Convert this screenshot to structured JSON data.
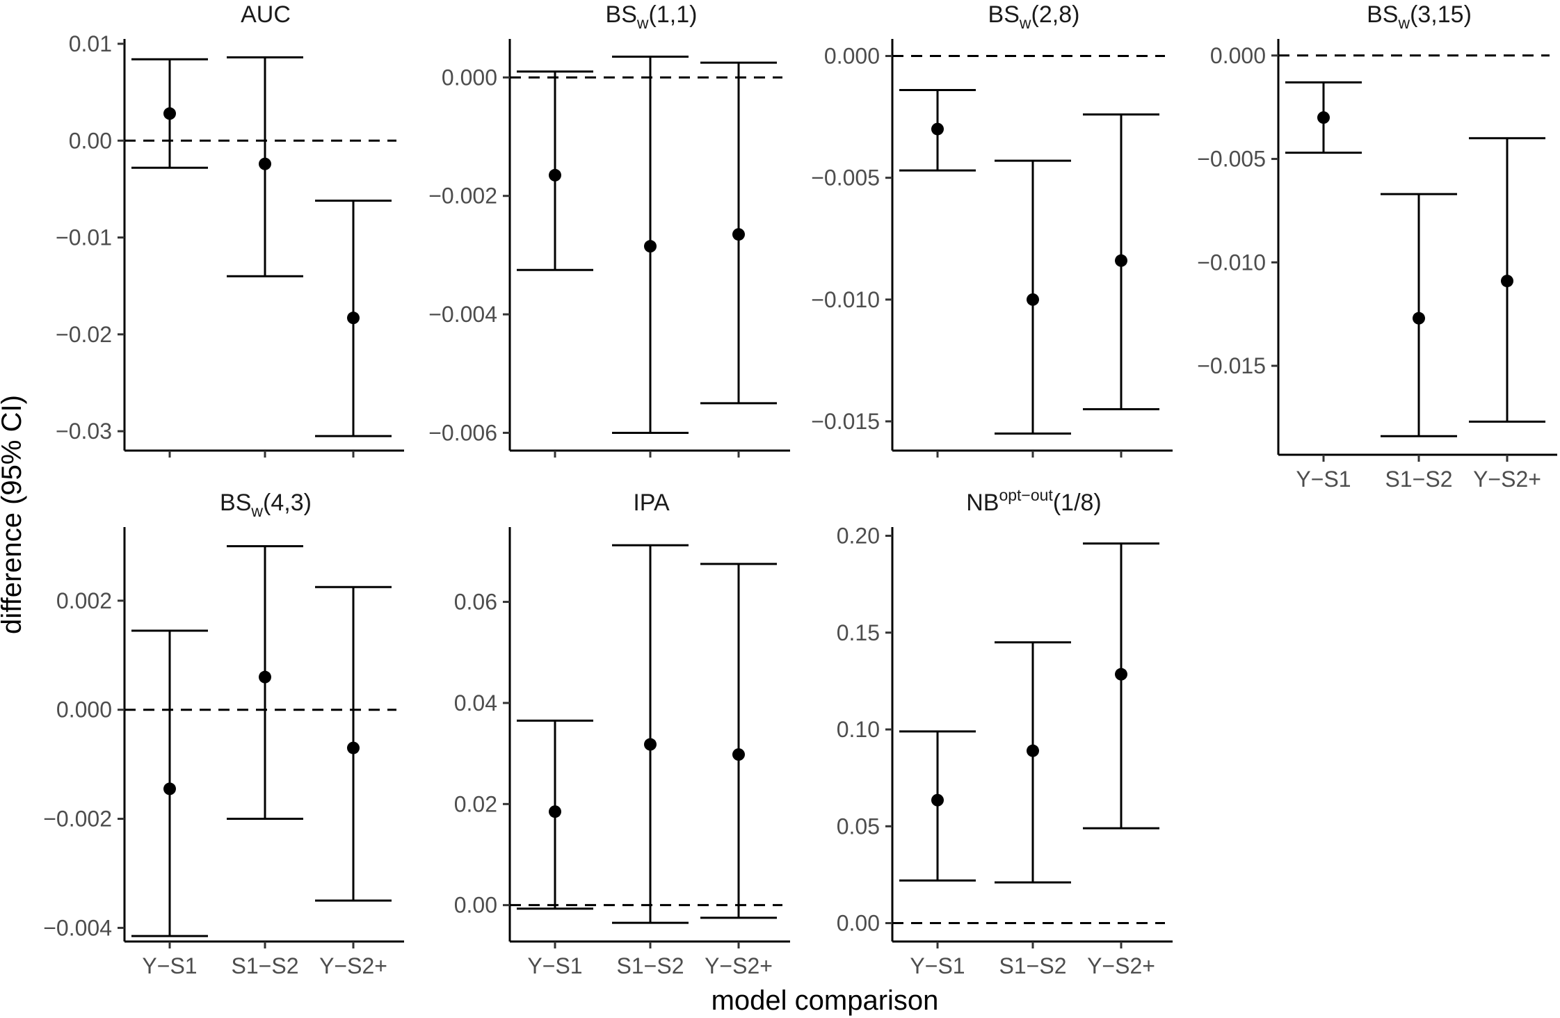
{
  "chart_data": {
    "type": "errorbar",
    "ylabel": "difference (95% CI)",
    "xlabel": "model comparison",
    "categories": [
      "Y−S1",
      "S1−S2",
      "Y−S2+"
    ],
    "reference_line": 0,
    "panels": [
      {
        "id": "auc",
        "title_main": "AUC",
        "title_script": "",
        "title_script_pos": "",
        "title_tail": "",
        "ylim": [
          -0.032,
          0.0105
        ],
        "ticks": [
          0.01,
          0.0,
          -0.01,
          -0.02,
          -0.03
        ],
        "tick_labels": [
          "0.01",
          "0.00",
          "−0.01",
          "−0.02",
          "−0.03"
        ],
        "points": [
          {
            "estimate": 0.0028,
            "lower": -0.0028,
            "upper": 0.0084
          },
          {
            "estimate": -0.0024,
            "lower": -0.014,
            "upper": 0.0086
          },
          {
            "estimate": -0.0183,
            "lower": -0.0305,
            "upper": -0.0062
          }
        ]
      },
      {
        "id": "bsw-1-1",
        "title_main": "BS",
        "title_script": "w",
        "title_script_pos": "sub",
        "title_tail": "(1,1)",
        "ylim": [
          -0.0063,
          0.00065
        ],
        "ticks": [
          0.0,
          -0.002,
          -0.004,
          -0.006
        ],
        "tick_labels": [
          "0.000",
          "−0.002",
          "−0.004",
          "−0.006"
        ],
        "points": [
          {
            "estimate": -0.00165,
            "lower": -0.00325,
            "upper": 0.0001
          },
          {
            "estimate": -0.00285,
            "lower": -0.006,
            "upper": 0.00035
          },
          {
            "estimate": -0.00265,
            "lower": -0.0055,
            "upper": 0.00025
          }
        ]
      },
      {
        "id": "bsw-2-8",
        "title_main": "BS",
        "title_script": "w",
        "title_script_pos": "sub",
        "title_tail": "(2,8)",
        "ylim": [
          -0.0162,
          0.0007
        ],
        "ticks": [
          0.0,
          -0.005,
          -0.01,
          -0.015
        ],
        "tick_labels": [
          "0.000",
          "−0.005",
          "−0.010",
          "−0.015"
        ],
        "points": [
          {
            "estimate": -0.003,
            "lower": -0.0047,
            "upper": -0.0014
          },
          {
            "estimate": -0.01,
            "lower": -0.0155,
            "upper": -0.0043
          },
          {
            "estimate": -0.0084,
            "lower": -0.0145,
            "upper": -0.0024
          }
        ]
      },
      {
        "id": "bsw-3-15",
        "title_main": "BS",
        "title_script": "w",
        "title_script_pos": "sub",
        "title_tail": "(3,15)",
        "ylim": [
          -0.0193,
          0.0008
        ],
        "ticks": [
          0.0,
          -0.005,
          -0.01,
          -0.015
        ],
        "tick_labels": [
          "0.000",
          "−0.005",
          "−0.010",
          "−0.015"
        ],
        "points": [
          {
            "estimate": -0.003,
            "lower": -0.0047,
            "upper": -0.0013
          },
          {
            "estimate": -0.0127,
            "lower": -0.0184,
            "upper": -0.0067
          },
          {
            "estimate": -0.0109,
            "lower": -0.0177,
            "upper": -0.004
          }
        ]
      },
      {
        "id": "bsw-4-3",
        "title_main": "BS",
        "title_script": "w",
        "title_script_pos": "sub",
        "title_tail": "(4,3)",
        "ylim": [
          -0.00425,
          0.00335
        ],
        "ticks": [
          0.002,
          0.0,
          -0.002,
          -0.004
        ],
        "tick_labels": [
          "0.002",
          "0.000",
          "−0.002",
          "−0.004"
        ],
        "points": [
          {
            "estimate": -0.00145,
            "lower": -0.00415,
            "upper": 0.00145
          },
          {
            "estimate": 0.0006,
            "lower": -0.002,
            "upper": 0.003
          },
          {
            "estimate": -0.0007,
            "lower": -0.0035,
            "upper": 0.00225
          }
        ]
      },
      {
        "id": "ipa",
        "title_main": "IPA",
        "title_script": "",
        "title_script_pos": "",
        "title_tail": "",
        "ylim": [
          -0.0072,
          0.0748
        ],
        "ticks": [
          0.06,
          0.04,
          0.02,
          0.0
        ],
        "tick_labels": [
          "0.06",
          "0.04",
          "0.02",
          "0.00"
        ],
        "points": [
          {
            "estimate": 0.0185,
            "lower": -0.0007,
            "upper": 0.0365
          },
          {
            "estimate": 0.0318,
            "lower": -0.0035,
            "upper": 0.0712
          },
          {
            "estimate": 0.0298,
            "lower": -0.0025,
            "upper": 0.0675
          }
        ]
      },
      {
        "id": "nb-opt-out",
        "title_main": "NB",
        "title_script": "opt−out",
        "title_script_pos": "sup",
        "title_tail": "(1/8)",
        "ylim": [
          -0.0095,
          0.2045
        ],
        "ticks": [
          0.2,
          0.15,
          0.1,
          0.05,
          0.0
        ],
        "tick_labels": [
          "0.20",
          "0.15",
          "0.10",
          "0.05",
          "0.00"
        ],
        "points": [
          {
            "estimate": 0.0635,
            "lower": 0.022,
            "upper": 0.099
          },
          {
            "estimate": 0.089,
            "lower": 0.021,
            "upper": 0.145
          },
          {
            "estimate": 0.1285,
            "lower": 0.049,
            "upper": 0.196
          }
        ]
      }
    ]
  }
}
